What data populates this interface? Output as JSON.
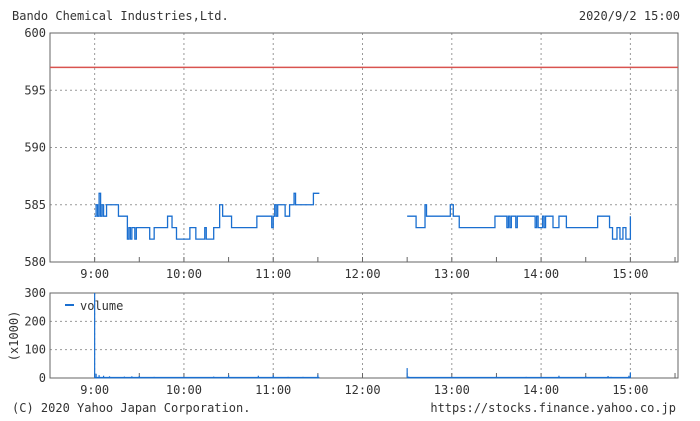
{
  "header": {
    "title": "Bando Chemical Industries,Ltd.",
    "datetime": "2020/9/2 15:00"
  },
  "footer": {
    "copyright": "(C) 2020 Yahoo Japan Corporation.",
    "url": "https://stocks.finance.yahoo.co.jp"
  },
  "chart_data": [
    {
      "type": "line",
      "step": true,
      "xlim": [
        "8:30",
        "15:32"
      ],
      "ylim": [
        580,
        600
      ],
      "yticks": [
        580,
        585,
        590,
        595,
        600
      ],
      "xticks": [
        "9:00",
        "10:00",
        "11:00",
        "12:00",
        "13:00",
        "14:00",
        "15:00"
      ],
      "grid": true,
      "reference_line": {
        "value": 597,
        "color": "#d9534f"
      },
      "line_color": "#1a6fd0",
      "segments": [
        [
          [
            "9:00",
            584
          ],
          [
            "9:01",
            585
          ],
          [
            "9:02",
            584
          ],
          [
            "9:03",
            586
          ],
          [
            "9:04",
            584
          ],
          [
            "9:05",
            585
          ],
          [
            "9:06",
            584
          ],
          [
            "9:08",
            585
          ],
          [
            "9:16",
            584
          ],
          [
            "9:22",
            582
          ],
          [
            "9:23",
            583
          ],
          [
            "9:24",
            582
          ],
          [
            "9:25",
            583
          ],
          [
            "9:27",
            582
          ],
          [
            "9:28",
            583
          ],
          [
            "9:37",
            582
          ],
          [
            "9:40",
            583
          ],
          [
            "9:49",
            584
          ],
          [
            "9:52",
            583
          ],
          [
            "9:55",
            582
          ],
          [
            "10:04",
            583
          ],
          [
            "10:08",
            582
          ],
          [
            "10:14",
            583
          ],
          [
            "10:15",
            582
          ],
          [
            "10:20",
            583
          ],
          [
            "10:24",
            585
          ],
          [
            "10:26",
            584
          ],
          [
            "10:32",
            583
          ],
          [
            "10:49",
            584
          ],
          [
            "10:59",
            583
          ],
          [
            "11:00",
            584
          ],
          [
            "11:01",
            585
          ],
          [
            "11:02",
            584
          ],
          [
            "11:03",
            585
          ],
          [
            "11:08",
            584
          ],
          [
            "11:11",
            585
          ],
          [
            "11:14",
            586
          ],
          [
            "11:15",
            585
          ],
          [
            "11:27",
            586
          ],
          [
            "11:31",
            586
          ]
        ],
        [
          [
            "12:30",
            584
          ],
          [
            "12:36",
            583
          ],
          [
            "12:42",
            585
          ],
          [
            "12:43",
            584
          ],
          [
            "12:59",
            585
          ],
          [
            "13:01",
            584
          ],
          [
            "13:05",
            583
          ],
          [
            "13:29",
            584
          ],
          [
            "13:37",
            583
          ],
          [
            "13:38",
            584
          ],
          [
            "13:39",
            583
          ],
          [
            "13:40",
            584
          ],
          [
            "13:43",
            583
          ],
          [
            "13:44",
            584
          ],
          [
            "13:56",
            583
          ],
          [
            "13:57",
            584
          ],
          [
            "13:58",
            583
          ],
          [
            "14:01",
            584
          ],
          [
            "14:02",
            583
          ],
          [
            "14:03",
            584
          ],
          [
            "14:08",
            583
          ],
          [
            "14:12",
            584
          ],
          [
            "14:17",
            583
          ],
          [
            "14:38",
            584
          ],
          [
            "14:46",
            583
          ],
          [
            "14:48",
            582
          ],
          [
            "14:51",
            583
          ],
          [
            "14:53",
            582
          ],
          [
            "14:55",
            583
          ],
          [
            "14:57",
            582
          ],
          [
            "15:00",
            583
          ],
          [
            "15:00",
            584
          ]
        ]
      ]
    },
    {
      "type": "bar",
      "ylabel": "(x1000)",
      "legend": "volume",
      "legend_placement": "top-left",
      "xlim": [
        "8:30",
        "15:32"
      ],
      "ylim": [
        0,
        300
      ],
      "yticks": [
        0,
        100,
        200,
        300
      ],
      "xticks": [
        "9:00",
        "10:00",
        "11:00",
        "12:00",
        "13:00",
        "14:00",
        "15:00"
      ],
      "grid": true,
      "color": "#1a6fd0",
      "values": [
        [
          "9:00",
          300
        ],
        [
          "9:01",
          15
        ],
        [
          "9:03",
          10
        ],
        [
          "9:06",
          8
        ],
        [
          "9:10",
          6
        ],
        [
          "9:20",
          5
        ],
        [
          "9:25",
          6
        ],
        [
          "9:30",
          7
        ],
        [
          "9:40",
          4
        ],
        [
          "10:00",
          4
        ],
        [
          "10:20",
          5
        ],
        [
          "10:30",
          10
        ],
        [
          "10:50",
          8
        ],
        [
          "11:00",
          10
        ],
        [
          "11:10",
          4
        ],
        [
          "11:20",
          4
        ],
        [
          "11:30",
          12
        ],
        [
          "12:30",
          35
        ],
        [
          "12:31",
          5
        ],
        [
          "13:00",
          4
        ],
        [
          "13:30",
          5
        ],
        [
          "13:50",
          4
        ],
        [
          "14:00",
          3
        ],
        [
          "14:12",
          8
        ],
        [
          "14:30",
          6
        ],
        [
          "14:45",
          7
        ],
        [
          "14:47",
          4
        ],
        [
          "14:59",
          8
        ],
        [
          "15:00",
          20
        ]
      ]
    }
  ]
}
